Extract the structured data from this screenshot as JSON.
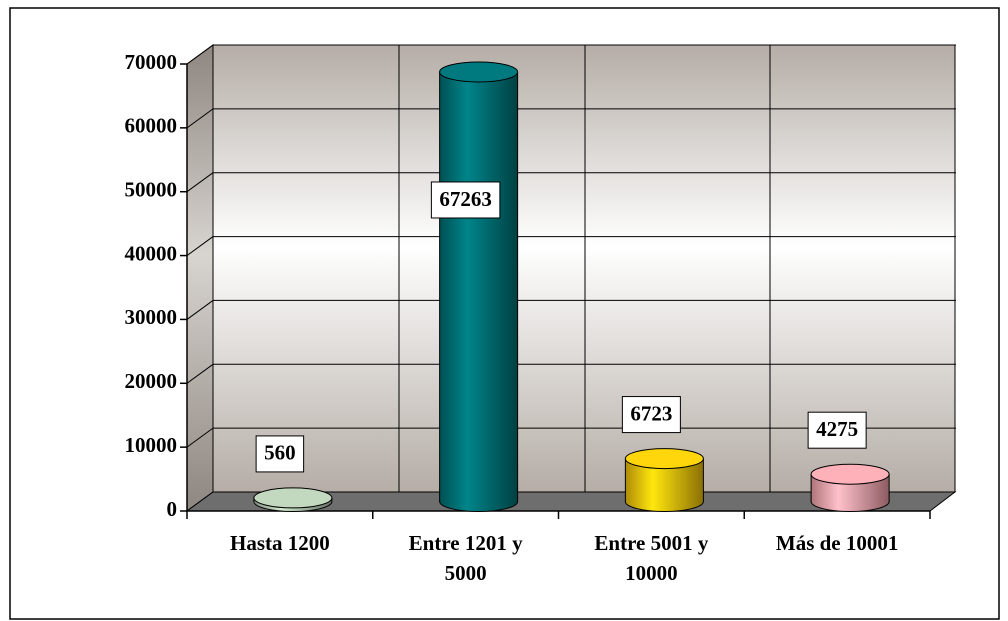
{
  "chart_data": {
    "type": "bar",
    "categories": [
      "Hasta 1200",
      "Entre 1201 y 5000",
      "Entre 5001 y 10000",
      "Más de 10001"
    ],
    "values": [
      560,
      67263,
      6723,
      4275
    ],
    "colors": [
      "#a9bca6",
      "#006a6e",
      "#e8b90a",
      "#e99aa2"
    ],
    "ylim": [
      0,
      70000
    ],
    "yticks": [
      0,
      10000,
      20000,
      30000,
      40000,
      50000,
      60000,
      70000
    ],
    "grid": true
  }
}
